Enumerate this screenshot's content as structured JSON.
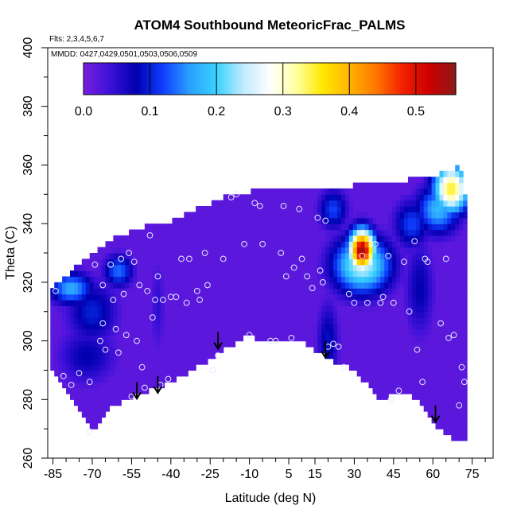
{
  "chart_data": {
    "type": "heatmap",
    "title": "ATOM4 Southbound MeteoricFrac_PALMS",
    "subtitle_flights": "Flts: 2,3,4,5,6,7",
    "subtitle_dates": "MMDD: 0427,0429,0501,0503,0506,0509",
    "xlabel": "Latitude (deg N)",
    "ylabel": "Theta (C)",
    "xlim": [
      -87,
      83
    ],
    "ylim": [
      260,
      400
    ],
    "xticks": [
      -85,
      -70,
      -55,
      -40,
      -25,
      -10,
      5,
      15,
      30,
      45,
      60,
      75
    ],
    "xtick_labels": [
      "-85",
      "-70",
      "-55",
      "-40",
      "-25",
      "-10",
      "5",
      "15",
      "30",
      "45",
      "60",
      "75"
    ],
    "yticks": [
      260,
      280,
      300,
      320,
      340,
      360,
      380,
      400
    ],
    "ytick_labels": [
      "260",
      "280",
      "300",
      "320",
      "340",
      "360",
      "380",
      "400"
    ],
    "colorbar": {
      "min": 0.0,
      "max": 0.56,
      "ticks": [
        0.0,
        0.1,
        0.2,
        0.3,
        0.4,
        0.5
      ],
      "tick_labels": [
        "0.0",
        "0.1",
        "0.2",
        "0.3",
        "0.4",
        "0.5"
      ],
      "colors": [
        "#7a1fe0",
        "#3c10d8",
        "#0000b0",
        "#0f3fff",
        "#2aa0ff",
        "#38d2ff",
        "#bfeaff",
        "#ffffff",
        "#ffffa0",
        "#ffe800",
        "#ffb300",
        "#ff7700",
        "#f22000",
        "#cc0000",
        "#8b1a1a"
      ]
    },
    "field_background_value": 0.02,
    "domain_top": [
      [
        -86,
        318
      ],
      [
        -80,
        322
      ],
      [
        -70,
        330
      ],
      [
        -60,
        336
      ],
      [
        -50,
        339
      ],
      [
        -40,
        341
      ],
      [
        -30,
        345
      ],
      [
        -20,
        349
      ],
      [
        -10,
        351
      ],
      [
        0,
        351
      ],
      [
        10,
        351
      ],
      [
        20,
        352
      ],
      [
        30,
        353
      ],
      [
        40,
        354
      ],
      [
        50,
        355
      ],
      [
        60,
        356
      ],
      [
        66,
        358
      ],
      [
        70,
        360
      ],
      [
        72,
        356
      ],
      [
        73,
        330
      ],
      [
        73,
        300
      ],
      [
        73,
        280
      ],
      [
        73,
        265
      ]
    ],
    "domain_bottom": [
      [
        -86,
        290
      ],
      [
        -80,
        283
      ],
      [
        -75,
        276
      ],
      [
        -70,
        269
      ],
      [
        -62,
        278
      ],
      [
        -55,
        281
      ],
      [
        -48,
        283
      ],
      [
        -40,
        286
      ],
      [
        -30,
        291
      ],
      [
        -20,
        297
      ],
      [
        -10,
        302
      ],
      [
        -5,
        299
      ],
      [
        0,
        300
      ],
      [
        5,
        301
      ],
      [
        10,
        300
      ],
      [
        20,
        294
      ],
      [
        30,
        290
      ],
      [
        40,
        280
      ],
      [
        50,
        283
      ],
      [
        55,
        279
      ],
      [
        62,
        270
      ],
      [
        68,
        266
      ],
      [
        73,
        265
      ]
    ],
    "features": [
      {
        "lat": 33,
        "theta": 331,
        "value": 0.55,
        "sx": 3.5,
        "sy": 5
      },
      {
        "lat": 33,
        "theta": 326,
        "value": 0.25,
        "sx": 8,
        "sy": 7
      },
      {
        "lat": 67,
        "theta": 352,
        "value": 0.35,
        "sx": 5,
        "sy": 6
      },
      {
        "lat": 62,
        "theta": 345,
        "value": 0.18,
        "sx": 6,
        "sy": 6
      },
      {
        "lat": 22,
        "theta": 345,
        "value": 0.12,
        "sx": 4,
        "sy": 5
      },
      {
        "lat": 52,
        "theta": 340,
        "value": 0.12,
        "sx": 5,
        "sy": 6
      },
      {
        "lat": -78,
        "theta": 318,
        "value": 0.17,
        "sx": 6,
        "sy": 4
      },
      {
        "lat": -60,
        "theta": 324,
        "value": 0.14,
        "sx": 4,
        "sy": 4
      },
      {
        "lat": -70,
        "theta": 310,
        "value": 0.1,
        "sx": 7,
        "sy": 8
      },
      {
        "lat": -72,
        "theta": 295,
        "value": 0.08,
        "sx": 8,
        "sy": 7
      },
      {
        "lat": 20,
        "theta": 300,
        "value": 0.09,
        "sx": 3,
        "sy": 10
      },
      {
        "lat": 55,
        "theta": 318,
        "value": 0.08,
        "sx": 4,
        "sy": 12
      },
      {
        "lat": -45,
        "theta": 312,
        "value": 0.05,
        "sx": 2,
        "sy": 12
      }
    ],
    "observations": [
      [
        -84,
        317
      ],
      [
        -81,
        288
      ],
      [
        -78,
        285
      ],
      [
        -75,
        289
      ],
      [
        -71,
        286
      ],
      [
        -71,
        269
      ],
      [
        -69,
        326
      ],
      [
        -66,
        319
      ],
      [
        -67,
        300
      ],
      [
        -66,
        306
      ],
      [
        -65,
        297
      ],
      [
        -63,
        326
      ],
      [
        -62,
        314
      ],
      [
        -61,
        304
      ],
      [
        -60,
        296
      ],
      [
        -59,
        328
      ],
      [
        -58,
        316
      ],
      [
        -57,
        302
      ],
      [
        -55,
        281
      ],
      [
        -56,
        330
      ],
      [
        -54,
        327
      ],
      [
        -53,
        300
      ],
      [
        -52,
        319
      ],
      [
        -51,
        291
      ],
      [
        -50,
        284
      ],
      [
        -49,
        317
      ],
      [
        -48,
        336
      ],
      [
        -47,
        308
      ],
      [
        -46,
        314
      ],
      [
        -45,
        322
      ],
      [
        -44,
        285
      ],
      [
        -43,
        314
      ],
      [
        -41,
        287
      ],
      [
        -40,
        315
      ],
      [
        -38,
        315
      ],
      [
        -36,
        328
      ],
      [
        -34,
        313
      ],
      [
        -33,
        328
      ],
      [
        -30,
        317
      ],
      [
        -29,
        314
      ],
      [
        -27,
        330
      ],
      [
        -26,
        319
      ],
      [
        -24,
        290
      ],
      [
        -22,
        295
      ],
      [
        -20,
        328
      ],
      [
        -17,
        349
      ],
      [
        -15,
        350
      ],
      [
        -12,
        333
      ],
      [
        -10,
        302
      ],
      [
        -8,
        347
      ],
      [
        -6,
        346
      ],
      [
        -5,
        333
      ],
      [
        -2,
        300
      ],
      [
        0,
        300
      ],
      [
        2,
        330
      ],
      [
        3,
        346
      ],
      [
        4,
        322
      ],
      [
        6,
        301
      ],
      [
        7,
        325
      ],
      [
        9,
        345
      ],
      [
        10,
        328
      ],
      [
        12,
        322
      ],
      [
        14,
        318
      ],
      [
        16,
        342
      ],
      [
        17,
        324
      ],
      [
        18,
        320
      ],
      [
        19,
        341
      ],
      [
        20,
        298
      ],
      [
        22,
        299
      ],
      [
        24,
        298
      ],
      [
        26,
        291
      ],
      [
        28,
        316
      ],
      [
        30,
        313
      ],
      [
        33,
        329
      ],
      [
        35,
        313
      ],
      [
        38,
        333
      ],
      [
        40,
        313
      ],
      [
        41,
        315
      ],
      [
        43,
        329
      ],
      [
        44,
        280
      ],
      [
        45,
        313
      ],
      [
        47,
        283
      ],
      [
        49,
        327
      ],
      [
        51,
        310
      ],
      [
        53,
        334
      ],
      [
        54,
        297
      ],
      [
        56,
        286
      ],
      [
        57,
        328
      ],
      [
        58,
        327
      ],
      [
        63,
        306
      ],
      [
        65,
        328
      ],
      [
        66,
        301
      ],
      [
        68,
        302
      ],
      [
        70,
        278
      ],
      [
        71,
        291
      ],
      [
        72,
        286
      ]
    ],
    "arrows": [
      [
        -53,
        280
      ],
      [
        -45,
        282
      ],
      [
        -22,
        297
      ],
      [
        19,
        294
      ],
      [
        61,
        272
      ]
    ]
  }
}
